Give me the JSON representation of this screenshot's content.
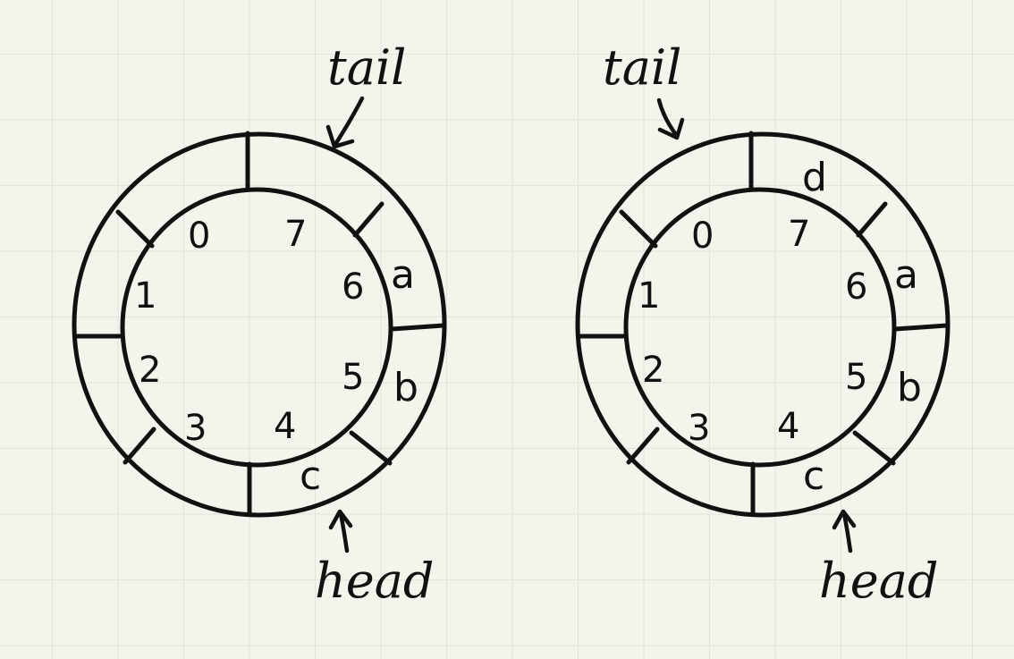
{
  "diagrams": [
    {
      "indices": [
        "0",
        "7",
        "6",
        "5",
        "4",
        "3",
        "2",
        "1"
      ],
      "slots": {
        "0": "",
        "7": "",
        "6": "a",
        "5": "b",
        "4": "c",
        "3": "",
        "2": "",
        "1": ""
      },
      "tail_label": "tail",
      "head_label": "head",
      "tail_slot": "7",
      "head_slot": "4"
    },
    {
      "indices": [
        "0",
        "7",
        "6",
        "5",
        "4",
        "3",
        "2",
        "1"
      ],
      "slots": {
        "0": "",
        "7": "d",
        "6": "a",
        "5": "b",
        "4": "c",
        "3": "",
        "2": "",
        "1": ""
      },
      "tail_label": "tail",
      "head_label": "head",
      "tail_slot": "0",
      "head_slot": "4"
    }
  ]
}
